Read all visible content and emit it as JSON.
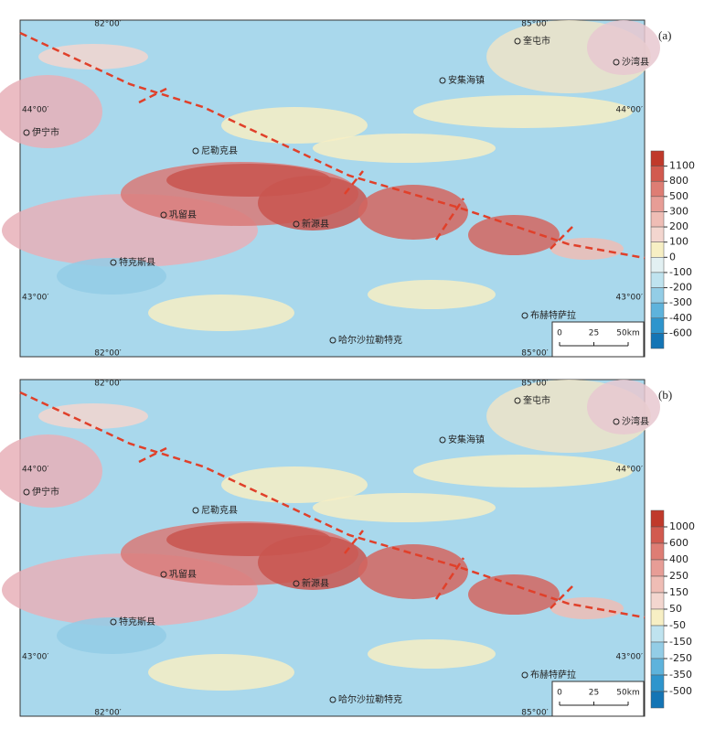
{
  "panels": [
    {
      "label": "(a)",
      "legend": {
        "ticks": [
          1100,
          800,
          500,
          300,
          200,
          100,
          0,
          -100,
          -200,
          -300,
          -400,
          -600
        ],
        "colors": [
          "#c0392b",
          "#d25a4f",
          "#de7d74",
          "#e79d96",
          "#efbdb5",
          "#f3d6cf",
          "#f7efc4",
          "#e2f0f2",
          "#bfe3ef",
          "#93cde6",
          "#5eb3dc",
          "#2e95cd",
          "#1475b5"
        ]
      }
    },
    {
      "label": "(b)",
      "legend": {
        "ticks": [
          1000,
          600,
          400,
          250,
          150,
          50,
          -50,
          -150,
          -250,
          -350,
          -500
        ],
        "colors": [
          "#c0392b",
          "#d25a4f",
          "#de7d74",
          "#e79d96",
          "#efbdb5",
          "#f3d6cf",
          "#f7efc4",
          "#bfe3ef",
          "#93cde6",
          "#5eb3dc",
          "#2e95cd",
          "#1475b5"
        ]
      }
    }
  ],
  "coordinates": {
    "lon": [
      "82°00′",
      "85°00′"
    ],
    "lat": [
      "44°00′",
      "43°00′"
    ]
  },
  "places": [
    "奎屯市",
    "沙湾县",
    "伊宁市",
    "尼勒克县",
    "巩留县",
    "新源县",
    "特克斯县",
    "安集海镇",
    "布赫特萨拉",
    "哈尔沙拉勒特克"
  ],
  "scale_bar": {
    "ticks": [
      0,
      25,
      {
        "value": 50,
        "label": "50km"
      }
    ]
  }
}
